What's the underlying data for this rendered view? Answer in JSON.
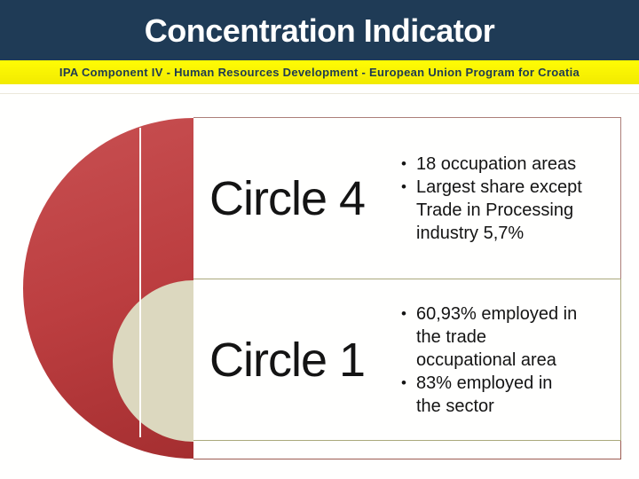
{
  "header": {
    "title": "Concentration Indicator"
  },
  "banner": {
    "text": "IPA Component IV - Human Resources Development - European Union Program for Croatia"
  },
  "bullet_char": "•",
  "diagram": {
    "type": "stacked-venn",
    "outer_circle": "red",
    "inner_circle": "cream",
    "rows": [
      {
        "label": "Circle 4",
        "bullets": [
          {
            "lines": [
              "18 occupation areas",
              "",
              ""
            ]
          },
          {
            "lines": [
              "Largest share except",
              "Trade in Processing",
              "industry 5,7%"
            ]
          }
        ]
      },
      {
        "label": "Circle 1",
        "bullets": [
          {
            "lines": [
              "60,93% employed in",
              "the trade",
              "occupational area"
            ]
          },
          {
            "lines": [
              "83% employed in",
              "the sector",
              ""
            ]
          }
        ]
      }
    ]
  },
  "colors": {
    "header_navy": "#1F3B56",
    "banner_yellow": "#F9F100",
    "banner_text": "#1E3A52",
    "outer_circle_top": "#C85052",
    "outer_circle_bottom": "#9D292B",
    "inner_circle": "#DCD8BF",
    "row1_border": "#AC7F78",
    "row2_border": "#ABA97C",
    "row3_border": "#9C5B51",
    "text": "#141414"
  }
}
